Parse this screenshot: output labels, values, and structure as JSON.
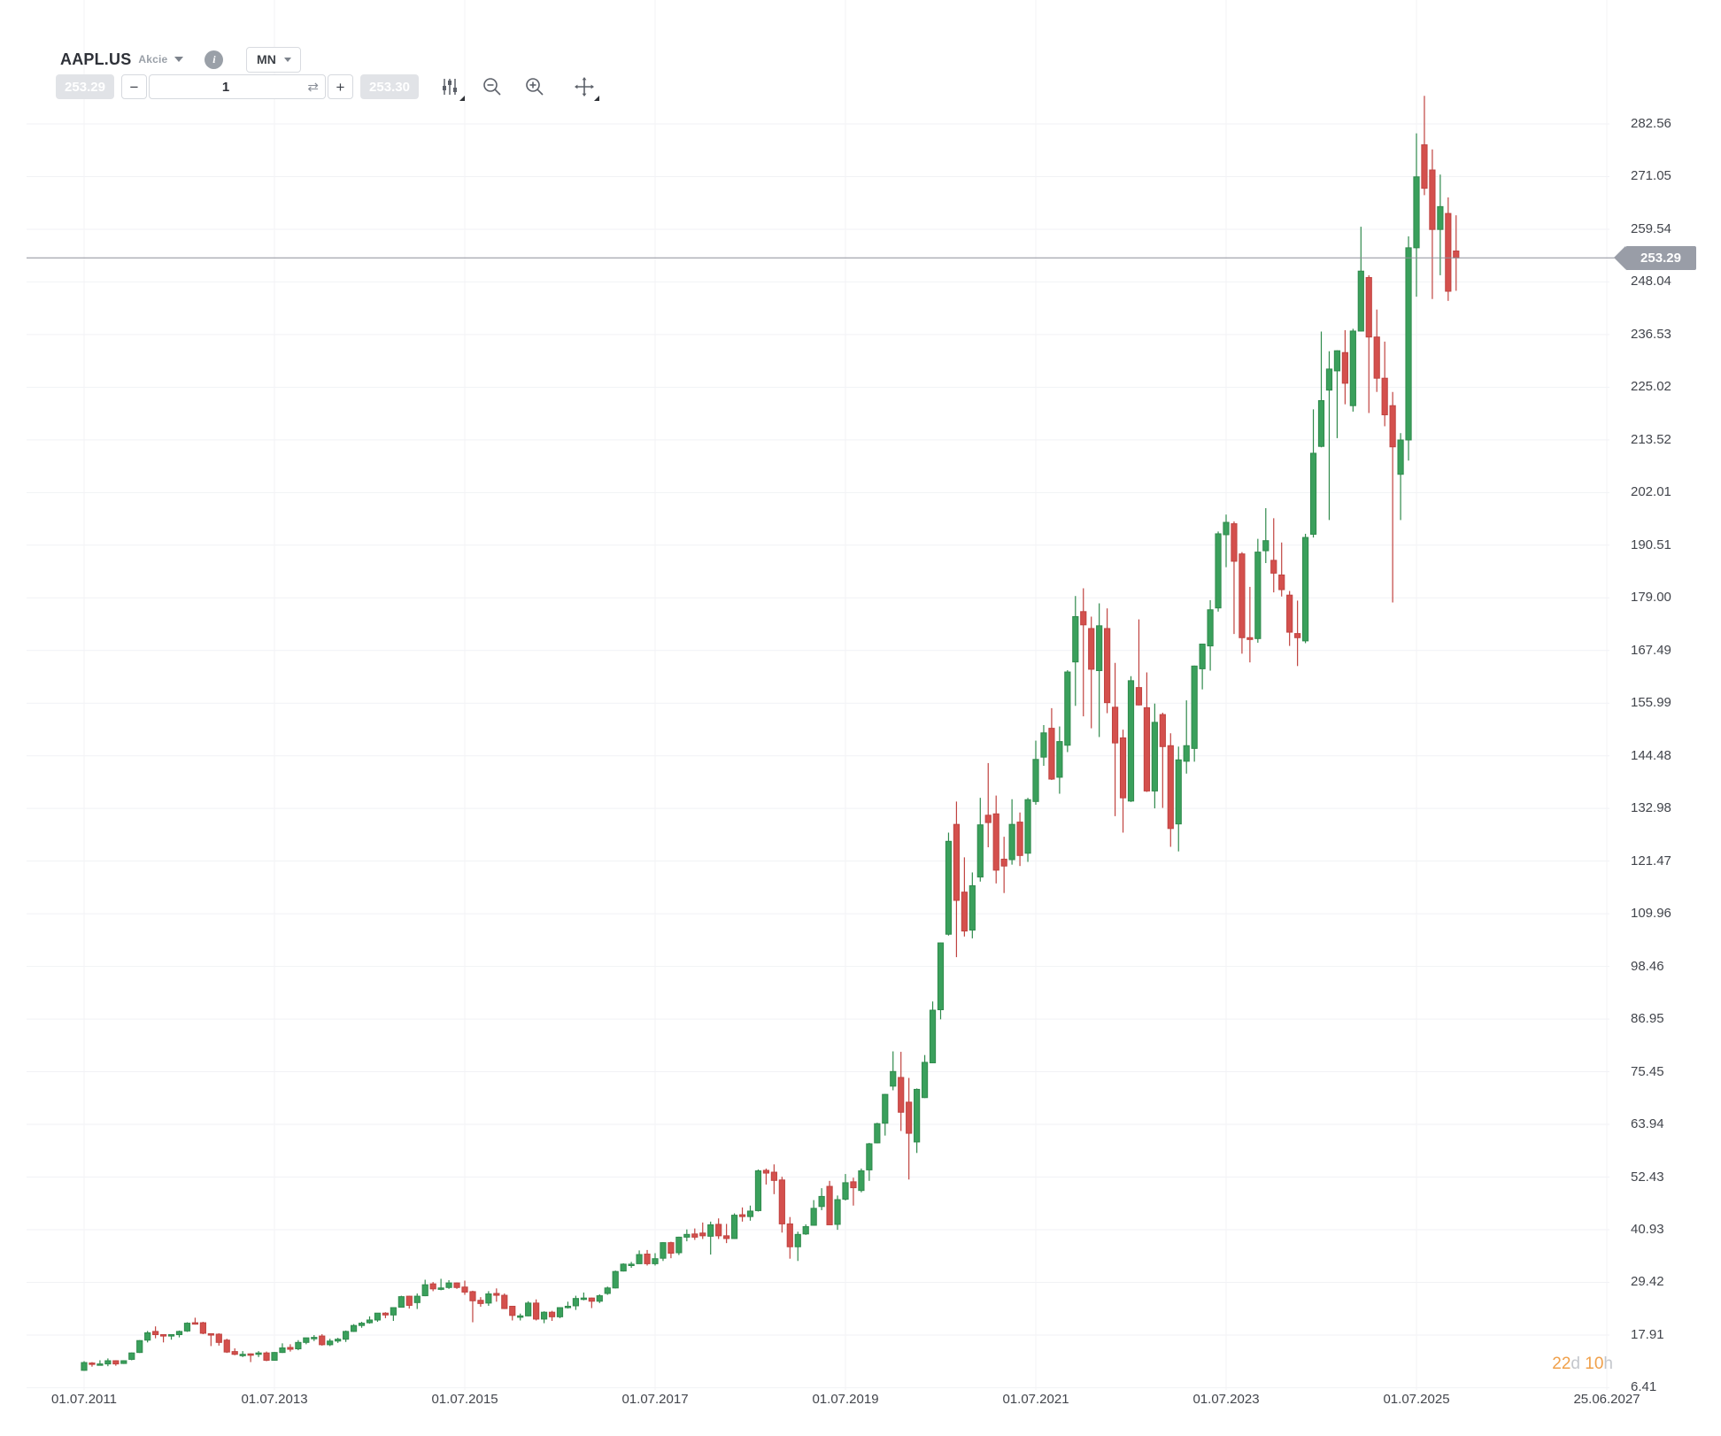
{
  "header": {
    "symbol": "AAPL.US",
    "instrument_type": "Akcie",
    "timeframe": "MN"
  },
  "trade_bar": {
    "sell_price": "253.29",
    "volume": "1",
    "buy_price": "253.30"
  },
  "icons": {
    "header": [
      "caret-down-icon",
      "info-icon",
      "caret-down-icon"
    ],
    "stepper": [
      "minus-icon",
      "swap-icon",
      "plus-icon"
    ],
    "toolbar": [
      "indicators-icon",
      "zoom-out-icon",
      "zoom-in-icon",
      "pan-icon"
    ]
  },
  "countdown": {
    "days": "22",
    "days_unit": "d",
    "hours": "10",
    "hours_unit": "h"
  },
  "chart_data": {
    "type": "candlestick",
    "symbol": "AAPL.US",
    "interval": "MN",
    "current_price": 253.29,
    "current_price_label": "253.29",
    "up_color": "#3aa05c",
    "up_border": "#2f8a4c",
    "down_color": "#d4504d",
    "down_border": "#c04340",
    "grid": true,
    "price_axis_ticks": [
      "282.56",
      "271.05",
      "259.54",
      "248.04",
      "236.53",
      "225.02",
      "213.52",
      "202.01",
      "190.51",
      "179.00",
      "167.49",
      "155.99",
      "144.48",
      "132.98",
      "121.47",
      "109.96",
      "98.46",
      "86.95",
      "75.45",
      "63.94",
      "52.43",
      "40.93",
      "29.42",
      "17.91",
      "6.41"
    ],
    "time_axis_ticks": [
      "01.07.2011",
      "01.07.2013",
      "01.07.2015",
      "01.07.2017",
      "01.07.2019",
      "01.07.2021",
      "01.07.2023",
      "01.07.2025",
      "25.06.2027"
    ],
    "start_month": "2011-07",
    "end_month": "2025-12",
    "fields": [
      "open",
      "high",
      "low",
      "close"
    ],
    "monthly_ohlc": [
      [
        10.2,
        12.2,
        10.1,
        11.9
      ],
      [
        11.8,
        12.0,
        11.0,
        11.6
      ],
      [
        11.6,
        12.4,
        11.3,
        11.6
      ],
      [
        11.6,
        12.8,
        11.1,
        12.3
      ],
      [
        12.3,
        12.4,
        11.2,
        11.6
      ],
      [
        11.7,
        12.4,
        11.6,
        12.3
      ],
      [
        12.6,
        14.1,
        12.4,
        14.0
      ],
      [
        14.1,
        16.8,
        14.0,
        16.7
      ],
      [
        16.8,
        18.8,
        16.3,
        18.4
      ],
      [
        18.7,
        19.8,
        17.2,
        18.0
      ],
      [
        18.0,
        18.1,
        16.3,
        17.7
      ],
      [
        17.7,
        18.1,
        16.9,
        18.0
      ],
      [
        18.0,
        18.9,
        17.4,
        18.7
      ],
      [
        18.8,
        20.7,
        18.6,
        20.5
      ],
      [
        20.6,
        21.7,
        20.2,
        20.5
      ],
      [
        20.6,
        20.8,
        18.1,
        18.3
      ],
      [
        18.2,
        18.3,
        15.5,
        18.0
      ],
      [
        18.1,
        18.3,
        15.6,
        16.3
      ],
      [
        16.8,
        17.1,
        14.0,
        14.2
      ],
      [
        14.3,
        15.0,
        13.5,
        13.7
      ],
      [
        13.7,
        14.4,
        13.1,
        13.7
      ],
      [
        13.8,
        13.9,
        12.0,
        13.7
      ],
      [
        14.0,
        14.4,
        13.1,
        14.0
      ],
      [
        14.0,
        14.3,
        12.2,
        12.4
      ],
      [
        12.4,
        14.2,
        12.3,
        14.1
      ],
      [
        14.1,
        16.1,
        14.0,
        15.1
      ],
      [
        15.2,
        15.9,
        14.3,
        14.8
      ],
      [
        14.9,
        16.8,
        14.6,
        16.3
      ],
      [
        16.3,
        17.3,
        15.9,
        17.3
      ],
      [
        17.3,
        17.9,
        16.6,
        17.4
      ],
      [
        17.7,
        18.1,
        15.6,
        15.8
      ],
      [
        15.8,
        17.1,
        15.5,
        16.6
      ],
      [
        16.6,
        17.3,
        16.2,
        17.0
      ],
      [
        17.0,
        18.9,
        16.4,
        18.7
      ],
      [
        18.7,
        20.3,
        18.6,
        20.0
      ],
      [
        20.0,
        20.8,
        19.5,
        20.5
      ],
      [
        20.6,
        22.0,
        20.4,
        21.2
      ],
      [
        21.2,
        22.7,
        20.8,
        22.7
      ],
      [
        22.7,
        22.9,
        21.6,
        22.3
      ],
      [
        22.3,
        24.0,
        21.0,
        23.9
      ],
      [
        24.0,
        26.5,
        23.9,
        26.3
      ],
      [
        26.4,
        26.5,
        23.7,
        24.4
      ],
      [
        25.0,
        27.0,
        23.6,
        26.4
      ],
      [
        26.5,
        30.0,
        26.4,
        28.9
      ],
      [
        29.1,
        29.5,
        27.5,
        28.0
      ],
      [
        28.1,
        30.2,
        27.7,
        28.2
      ],
      [
        28.3,
        29.9,
        28.0,
        29.3
      ],
      [
        29.3,
        29.4,
        28.0,
        28.3
      ],
      [
        28.4,
        29.8,
        26.7,
        27.3
      ],
      [
        27.4,
        27.6,
        20.7,
        25.4
      ],
      [
        25.5,
        26.2,
        24.1,
        24.8
      ],
      [
        24.9,
        27.5,
        24.3,
        26.9
      ],
      [
        27.0,
        28.1,
        25.2,
        26.6
      ],
      [
        26.6,
        27.0,
        23.6,
        23.7
      ],
      [
        24.2,
        24.2,
        21.1,
        22.2
      ],
      [
        22.1,
        22.6,
        21.1,
        22.1
      ],
      [
        22.1,
        25.3,
        22.0,
        24.9
      ],
      [
        24.9,
        25.7,
        21.1,
        21.4
      ],
      [
        21.4,
        23.1,
        20.5,
        22.9
      ],
      [
        22.9,
        23.2,
        21.0,
        21.9
      ],
      [
        21.9,
        23.9,
        21.6,
        23.9
      ],
      [
        23.9,
        25.2,
        23.7,
        24.2
      ],
      [
        24.3,
        26.5,
        23.4,
        25.9
      ],
      [
        25.9,
        27.2,
        25.5,
        26.0
      ],
      [
        26.0,
        26.1,
        23.8,
        25.3
      ],
      [
        25.3,
        26.8,
        24.9,
        26.5
      ],
      [
        27.0,
        28.5,
        26.7,
        28.2
      ],
      [
        28.2,
        32.0,
        28.1,
        31.8
      ],
      [
        31.9,
        33.6,
        31.8,
        33.4
      ],
      [
        33.4,
        33.9,
        32.6,
        33.4
      ],
      [
        33.5,
        36.4,
        33.5,
        35.5
      ],
      [
        35.6,
        36.5,
        33.1,
        33.5
      ],
      [
        33.5,
        35.8,
        33.1,
        34.6
      ],
      [
        34.7,
        38.2,
        34.1,
        38.1
      ],
      [
        38.1,
        38.3,
        34.7,
        35.8
      ],
      [
        35.9,
        39.4,
        35.4,
        39.3
      ],
      [
        39.3,
        41.0,
        38.4,
        39.9
      ],
      [
        40.0,
        41.2,
        38.7,
        39.3
      ],
      [
        40.2,
        42.5,
        38.9,
        39.6
      ],
      [
        39.5,
        42.7,
        35.5,
        42.0
      ],
      [
        42.1,
        43.4,
        38.9,
        39.6
      ],
      [
        39.6,
        42.2,
        38.0,
        39.0
      ],
      [
        39.0,
        44.5,
        38.9,
        44.1
      ],
      [
        44.2,
        45.8,
        42.7,
        43.8
      ],
      [
        43.8,
        46.2,
        42.9,
        45.0
      ],
      [
        45.1,
        54.1,
        44.9,
        53.8
      ],
      [
        53.9,
        54.3,
        50.8,
        53.3
      ],
      [
        53.5,
        55.2,
        48.7,
        51.7
      ],
      [
        51.8,
        52.5,
        40.3,
        42.2
      ],
      [
        42.2,
        43.7,
        34.6,
        37.2
      ],
      [
        37.2,
        40.5,
        34.1,
        39.9
      ],
      [
        40.0,
        42.1,
        39.8,
        41.6
      ],
      [
        41.9,
        47.4,
        41.8,
        45.6
      ],
      [
        46.0,
        50.0,
        45.2,
        48.2
      ],
      [
        50.4,
        51.6,
        42.0,
        42.0
      ],
      [
        42.1,
        48.4,
        40.9,
        47.5
      ],
      [
        47.6,
        53.1,
        47.3,
        51.2
      ],
      [
        51.4,
        52.3,
        46.2,
        50.1
      ],
      [
        49.5,
        54.3,
        49.1,
        53.8
      ],
      [
        54.0,
        59.9,
        51.6,
        59.7
      ],
      [
        59.9,
        64.3,
        59.8,
        64.1
      ],
      [
        64.2,
        70.6,
        61.5,
        70.5
      ],
      [
        72.3,
        79.9,
        71.4,
        75.5
      ],
      [
        74.2,
        79.8,
        62.5,
        66.6
      ],
      [
        68.8,
        74.1,
        51.9,
        62.0
      ],
      [
        60.1,
        71.8,
        57.7,
        71.6
      ],
      [
        69.8,
        79.1,
        69.7,
        77.5
      ],
      [
        77.4,
        90.8,
        77.3,
        88.9
      ],
      [
        89.0,
        103.7,
        86.9,
        103.6
      ],
      [
        105.5,
        127.7,
        105.2,
        125.8
      ],
      [
        129.5,
        134.5,
        100.5,
        112.9
      ],
      [
        114.7,
        122.3,
        105.0,
        106.2
      ],
      [
        106.4,
        119.0,
        104.6,
        116.1
      ],
      [
        118.0,
        135.3,
        117.0,
        129.4
      ],
      [
        131.5,
        142.9,
        124.5,
        129.9
      ],
      [
        131.8,
        135.8,
        116.6,
        119.5
      ],
      [
        121.9,
        126.8,
        114.5,
        120.4
      ],
      [
        121.8,
        135.0,
        120.7,
        129.5
      ],
      [
        130.0,
        132.1,
        120.4,
        122.7
      ],
      [
        123.2,
        135.3,
        121.3,
        134.9
      ],
      [
        134.5,
        147.8,
        133.8,
        143.7
      ],
      [
        144.2,
        151.2,
        142.3,
        149.5
      ],
      [
        150.5,
        154.9,
        139.2,
        139.4
      ],
      [
        139.8,
        150.9,
        136.2,
        147.6
      ],
      [
        146.8,
        163.2,
        145.3,
        162.8
      ],
      [
        165.0,
        179.4,
        155.4,
        174.9
      ],
      [
        176.0,
        181.1,
        153.1,
        173.1
      ],
      [
        172.3,
        174.9,
        150.5,
        163.4
      ],
      [
        163.1,
        177.8,
        148.6,
        172.9
      ],
      [
        172.3,
        176.7,
        153.8,
        156.1
      ],
      [
        155.1,
        164.8,
        131.3,
        147.3
      ],
      [
        148.4,
        150.2,
        127.7,
        135.3
      ],
      [
        134.6,
        161.9,
        134.4,
        160.9
      ],
      [
        159.4,
        174.3,
        155.5,
        155.6
      ],
      [
        155.0,
        162.7,
        136.6,
        136.8
      ],
      [
        136.8,
        155.9,
        133.0,
        151.8
      ],
      [
        153.5,
        153.9,
        133.1,
        146.5
      ],
      [
        146.7,
        149.4,
        124.6,
        128.6
      ],
      [
        129.6,
        146.5,
        123.6,
        143.6
      ],
      [
        143.3,
        156.6,
        140.6,
        146.7
      ],
      [
        146.1,
        164.2,
        143.2,
        164.1
      ],
      [
        163.5,
        169.0,
        159.0,
        168.9
      ],
      [
        168.5,
        178.5,
        163.1,
        176.4
      ],
      [
        176.8,
        193.5,
        176.0,
        193.0
      ],
      [
        192.8,
        197.2,
        185.7,
        195.5
      ],
      [
        195.2,
        195.7,
        171.1,
        187.0
      ],
      [
        188.6,
        189.0,
        166.8,
        170.3
      ],
      [
        170.3,
        181.4,
        164.9,
        169.9
      ],
      [
        170.1,
        191.9,
        169.2,
        189.0
      ],
      [
        189.3,
        198.6,
        186.6,
        191.5
      ],
      [
        187.2,
        196.4,
        180.2,
        184.4
      ],
      [
        184.0,
        191.1,
        179.3,
        180.8
      ],
      [
        179.6,
        180.5,
        168.5,
        171.5
      ],
      [
        171.2,
        178.4,
        164.1,
        170.3
      ],
      [
        169.6,
        193.0,
        169.1,
        192.2
      ],
      [
        192.9,
        220.2,
        192.2,
        210.6
      ],
      [
        212.1,
        237.2,
        211.9,
        222.1
      ],
      [
        224.4,
        232.9,
        196.0,
        229.0
      ],
      [
        228.6,
        233.1,
        213.9,
        233.0
      ],
      [
        232.6,
        237.5,
        221.3,
        225.9
      ],
      [
        221.0,
        237.8,
        219.7,
        237.3
      ],
      [
        237.3,
        260.1,
        237.2,
        250.4
      ],
      [
        249.0,
        249.5,
        219.4,
        236.0
      ],
      [
        236.0,
        242.0,
        224.0,
        227.0
      ],
      [
        227.0,
        235.0,
        216.5,
        219.0
      ],
      [
        221.0,
        224.0,
        178.0,
        212.0
      ],
      [
        206.0,
        215.0,
        196.0,
        213.5
      ],
      [
        213.5,
        258.0,
        209.0,
        255.5
      ],
      [
        255.5,
        280.5,
        244.8,
        271.0
      ],
      [
        278.0,
        288.7,
        267.0,
        268.5
      ],
      [
        272.5,
        277.0,
        244.3,
        259.5
      ],
      [
        259.5,
        271.5,
        249.5,
        264.5
      ],
      [
        263.0,
        266.5,
        243.9,
        246.0
      ],
      [
        254.8,
        262.6,
        246.1,
        253.29
      ]
    ]
  }
}
